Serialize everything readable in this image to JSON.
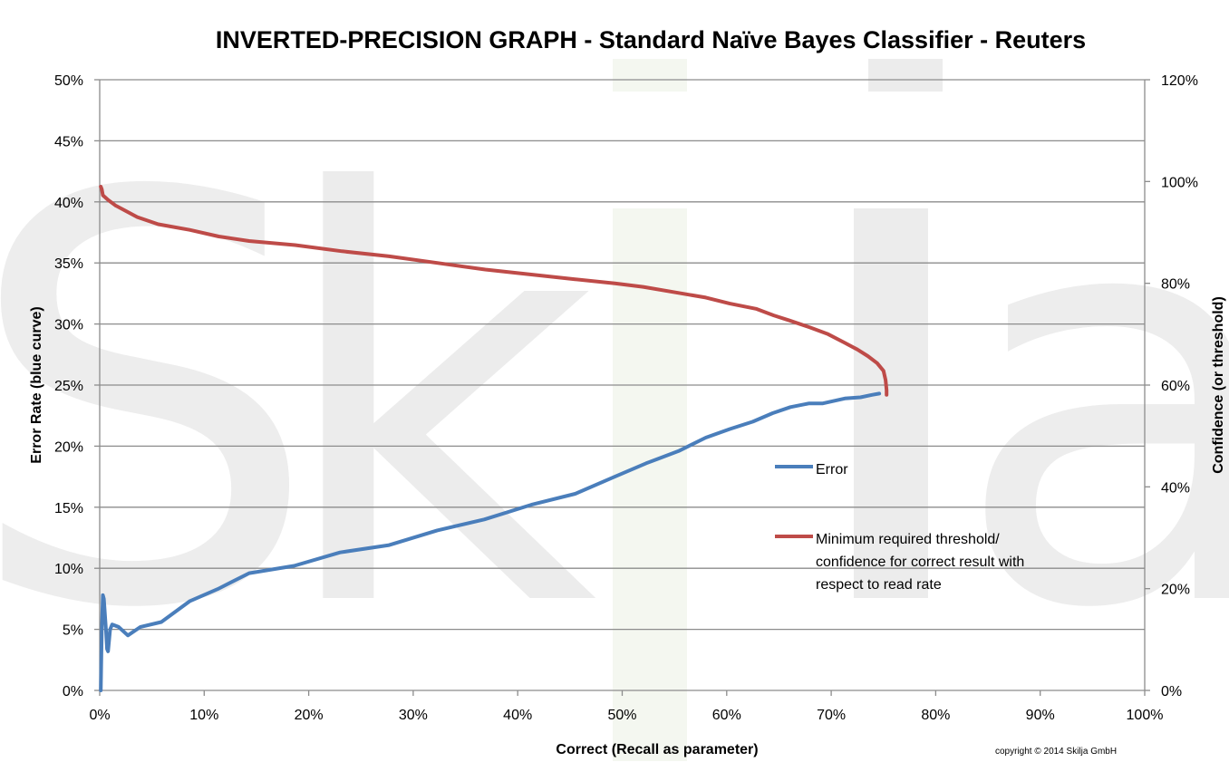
{
  "chart_data": {
    "type": "line",
    "title": "INVERTED-PRECISION GRAPH - Standard Naïve Bayes Classifier - Reuters",
    "xlabel": "Correct (Recall as parameter)",
    "ylabel": "Error Rate (blue curve)",
    "y2label": "Confidence (or threshold)",
    "xlim": [
      0,
      100
    ],
    "ylim": [
      0,
      50
    ],
    "y2lim": [
      0,
      120
    ],
    "x_ticks": [
      "0%",
      "10%",
      "20%",
      "30%",
      "40%",
      "50%",
      "60%",
      "70%",
      "80%",
      "90%",
      "100%"
    ],
    "y_ticks": [
      "0%",
      "5%",
      "10%",
      "15%",
      "20%",
      "25%",
      "30%",
      "35%",
      "40%",
      "45%",
      "50%"
    ],
    "y2_ticks": [
      "0%",
      "20%",
      "40%",
      "60%",
      "80%",
      "100%",
      "120%"
    ],
    "grid": "horizontal",
    "legend_position": "center-right",
    "watermark": "Skilja",
    "copyright": "copyright ©  2014 Skilja GmbH",
    "series": [
      {
        "name": "Error",
        "axis": "left",
        "color": "#4a7ebb",
        "points": [
          [
            0.1,
            0
          ],
          [
            0.2,
            5
          ],
          [
            0.3,
            7.8
          ],
          [
            0.4,
            7.5
          ],
          [
            0.6,
            5
          ],
          [
            0.7,
            3.4
          ],
          [
            0.8,
            3.2
          ],
          [
            1.0,
            5.0
          ],
          [
            1.2,
            5.4
          ],
          [
            1.8,
            5.2
          ],
          [
            2.7,
            4.5
          ],
          [
            3.9,
            5.2
          ],
          [
            5.9,
            5.6
          ],
          [
            8.6,
            7.3
          ],
          [
            11.3,
            8.3
          ],
          [
            14.3,
            9.6
          ],
          [
            18.6,
            10.2
          ],
          [
            23.0,
            11.3
          ],
          [
            27.7,
            11.9
          ],
          [
            32.3,
            13.1
          ],
          [
            36.8,
            14.0
          ],
          [
            41.3,
            15.2
          ],
          [
            45.5,
            16.1
          ],
          [
            49.3,
            17.5
          ],
          [
            52.3,
            18.6
          ],
          [
            55.4,
            19.6
          ],
          [
            58.0,
            20.7
          ],
          [
            60.3,
            21.4
          ],
          [
            62.5,
            22.0
          ],
          [
            64.4,
            22.7
          ],
          [
            66.1,
            23.2
          ],
          [
            67.9,
            23.5
          ],
          [
            69.2,
            23.5
          ],
          [
            71.3,
            23.9
          ],
          [
            72.8,
            24.0
          ],
          [
            73.9,
            24.2
          ],
          [
            74.6,
            24.3
          ]
        ]
      },
      {
        "name": "Minimum required threshold/ confidence for correct result with respect to read rate",
        "name_lines": [
          "Minimum required threshold/",
          "confidence for correct result with",
          "respect to read rate"
        ],
        "axis": "right",
        "color": "#be4b48",
        "points": [
          [
            0.1,
            99
          ],
          [
            0.2,
            98.5
          ],
          [
            0.3,
            97.3
          ],
          [
            0.8,
            96.4
          ],
          [
            1.5,
            95.3
          ],
          [
            2.4,
            94.3
          ],
          [
            3.6,
            93.0
          ],
          [
            5.6,
            91.6
          ],
          [
            8.6,
            90.5
          ],
          [
            11.4,
            89.2
          ],
          [
            14.3,
            88.3
          ],
          [
            18.7,
            87.5
          ],
          [
            23.2,
            86.3
          ],
          [
            27.7,
            85.3
          ],
          [
            32.3,
            84.0
          ],
          [
            36.9,
            82.7
          ],
          [
            41.4,
            81.7
          ],
          [
            45.5,
            80.8
          ],
          [
            49.3,
            80.0
          ],
          [
            52.0,
            79.3
          ],
          [
            55.4,
            78.1
          ],
          [
            58.0,
            77.2
          ],
          [
            60.3,
            76.0
          ],
          [
            62.8,
            75.0
          ],
          [
            64.5,
            73.7
          ],
          [
            66.0,
            72.7
          ],
          [
            68.0,
            71.3
          ],
          [
            69.7,
            70.0
          ],
          [
            71.3,
            68.3
          ],
          [
            72.5,
            67.0
          ],
          [
            73.5,
            65.7
          ],
          [
            74.4,
            64.3
          ],
          [
            75.0,
            62.8
          ],
          [
            75.2,
            61.0
          ],
          [
            75.3,
            59.0
          ],
          [
            75.3,
            58.1
          ]
        ]
      }
    ]
  }
}
